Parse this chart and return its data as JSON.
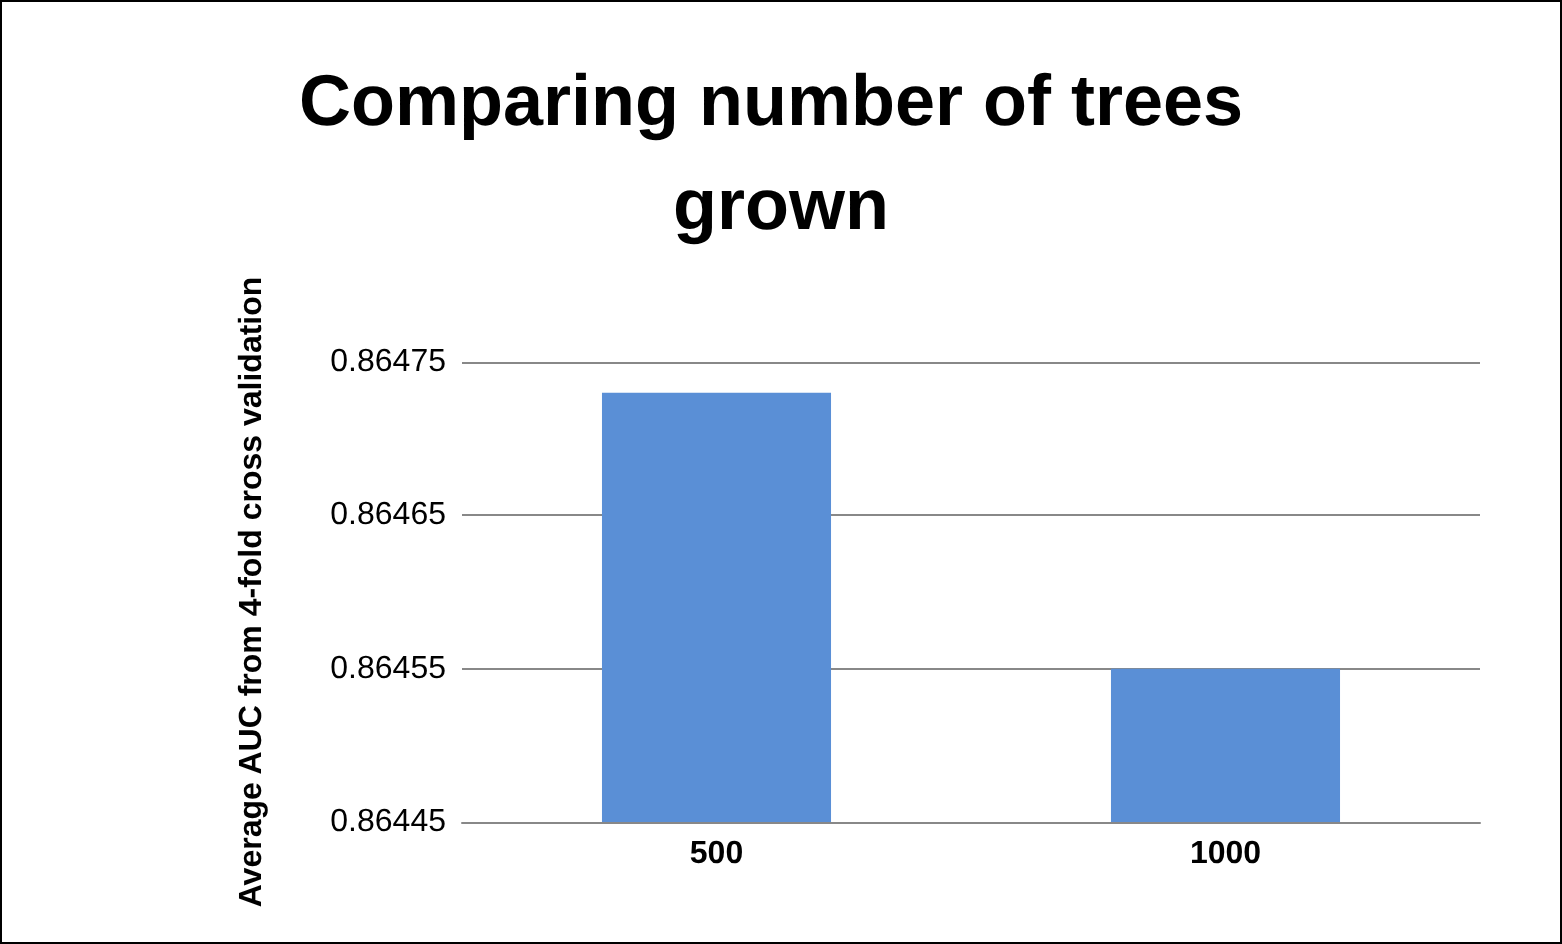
{
  "chart_data": {
    "type": "bar",
    "title": "Comparing number of trees grown",
    "ylabel": "Average AUC from 4-fold cross validation",
    "categories": [
      "500",
      "1000"
    ],
    "values": [
      0.86473,
      0.86455
    ],
    "color": "#5a8fd6",
    "ylim": [
      0.86445,
      0.86475
    ],
    "yticks": [
      0.86445,
      0.86455,
      0.86465,
      0.86475
    ],
    "grid": "y"
  }
}
